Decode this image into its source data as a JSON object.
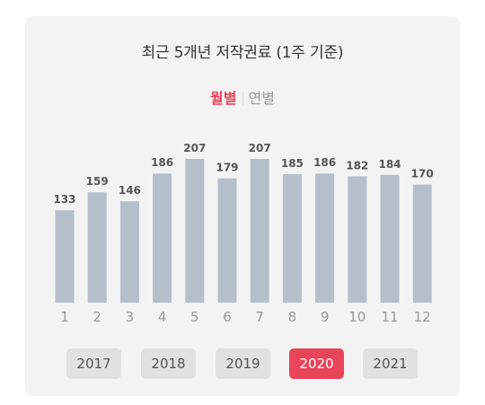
{
  "title": "최근 5개년 저작권료 (1주 기준)",
  "toggle": {
    "monthly": "월별",
    "yearly": "연별",
    "active": "monthly"
  },
  "colors": {
    "bar": "#b5bfcc",
    "accent": "#e8445a",
    "label": "#555555",
    "tick": "#999999"
  },
  "chart_data": {
    "type": "bar",
    "categories": [
      "1",
      "2",
      "3",
      "4",
      "5",
      "6",
      "7",
      "8",
      "9",
      "10",
      "11",
      "12"
    ],
    "values": [
      133,
      159,
      146,
      186,
      207,
      179,
      207,
      185,
      186,
      182,
      184,
      170
    ],
    "title": "최근 5개년 저작권료 (1주 기준)",
    "xlabel": "",
    "ylabel": "",
    "ylim": [
      0,
      210
    ],
    "grid": false
  },
  "years": [
    "2017",
    "2018",
    "2019",
    "2020",
    "2021"
  ],
  "selected_year": "2020"
}
